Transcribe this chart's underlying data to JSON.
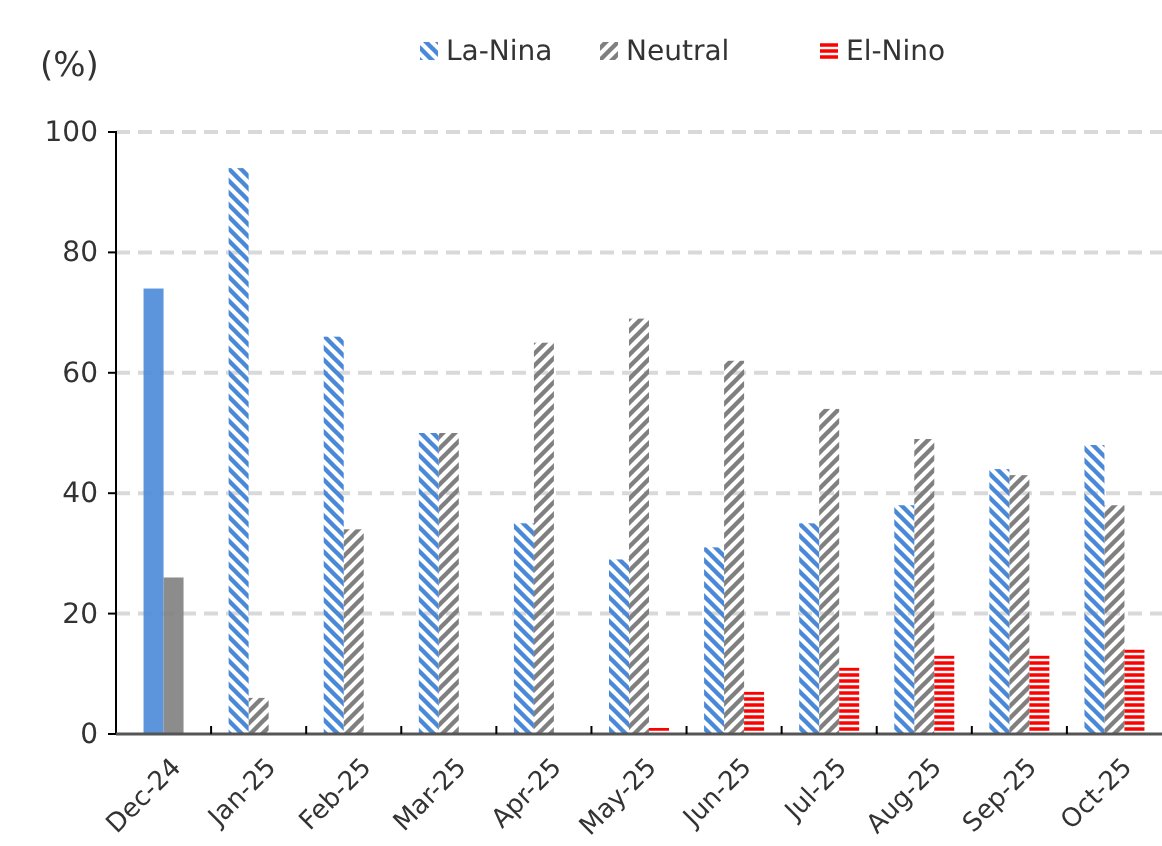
{
  "chart_data": {
    "type": "bar",
    "ylabel": "(%)",
    "categories": [
      "Dec-24",
      "Jan-25",
      "Feb-25",
      "Mar-25",
      "Apr-25",
      "May-25",
      "Jun-25",
      "Jul-25",
      "Aug-25",
      "Sep-25",
      "Oct-25"
    ],
    "series": [
      {
        "name": "La-Nina",
        "color": "#4a89d8",
        "values": [
          74,
          94,
          66,
          50,
          35,
          29,
          31,
          35,
          38,
          44,
          48
        ]
      },
      {
        "name": "Neutral",
        "color": "#808080",
        "values": [
          26,
          6,
          34,
          50,
          65,
          69,
          62,
          54,
          49,
          43,
          38
        ]
      },
      {
        "name": "El-Nino",
        "color": "#ff0000",
        "values": [
          null,
          null,
          null,
          null,
          null,
          1,
          7,
          11,
          13,
          13,
          14
        ]
      }
    ],
    "ylim": [
      0,
      100
    ],
    "yticks": [
      0,
      20,
      40,
      60,
      80,
      100
    ],
    "grid": "y",
    "legend": "top"
  }
}
